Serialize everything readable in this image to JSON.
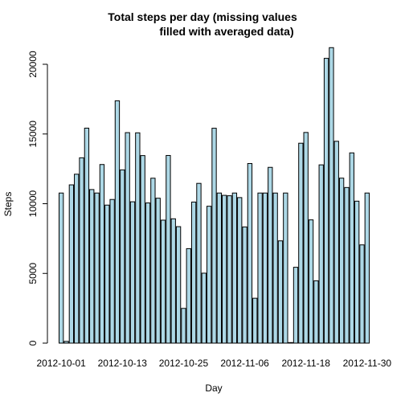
{
  "chart_data": {
    "type": "bar",
    "title": "Total steps per day (missing values",
    "title_line2": "filled with averaged data)",
    "xlabel": "Day",
    "ylabel": "Steps",
    "ylim": [
      0,
      21500
    ],
    "yticks": [
      "0",
      "5000",
      "10000",
      "15000",
      "20000"
    ],
    "ytick_values": [
      0,
      5000,
      10000,
      15000,
      20000
    ],
    "xtick_labels": [
      "2012-10-01",
      "2012-10-13",
      "2012-10-25",
      "2012-11-06",
      "2012-11-18",
      "2012-11-30"
    ],
    "xtick_indices": [
      1,
      13,
      25,
      37,
      49,
      61
    ],
    "bar_fill": "#add8e6",
    "bar_stroke": "#000000",
    "categories": [
      "2012-10-01",
      "2012-10-02",
      "2012-10-03",
      "2012-10-04",
      "2012-10-05",
      "2012-10-06",
      "2012-10-07",
      "2012-10-08",
      "2012-10-09",
      "2012-10-10",
      "2012-10-11",
      "2012-10-12",
      "2012-10-13",
      "2012-10-14",
      "2012-10-15",
      "2012-10-16",
      "2012-10-17",
      "2012-10-18",
      "2012-10-19",
      "2012-10-20",
      "2012-10-21",
      "2012-10-22",
      "2012-10-23",
      "2012-10-24",
      "2012-10-25",
      "2012-10-26",
      "2012-10-27",
      "2012-10-28",
      "2012-10-29",
      "2012-10-30",
      "2012-10-31",
      "2012-11-01",
      "2012-11-02",
      "2012-11-03",
      "2012-11-04",
      "2012-11-05",
      "2012-11-06",
      "2012-11-07",
      "2012-11-08",
      "2012-11-09",
      "2012-11-10",
      "2012-11-11",
      "2012-11-12",
      "2012-11-13",
      "2012-11-14",
      "2012-11-15",
      "2012-11-16",
      "2012-11-17",
      "2012-11-18",
      "2012-11-19",
      "2012-11-20",
      "2012-11-21",
      "2012-11-22",
      "2012-11-23",
      "2012-11-24",
      "2012-11-25",
      "2012-11-26",
      "2012-11-27",
      "2012-11-28",
      "2012-11-29",
      "2012-11-30"
    ],
    "values": [
      10766,
      126,
      11352,
      12116,
      13294,
      15420,
      11015,
      10766,
      12811,
      9900,
      10304,
      17382,
      12426,
      15098,
      10139,
      15084,
      13452,
      10056,
      11829,
      10395,
      8821,
      13460,
      8918,
      8355,
      2492,
      6778,
      10119,
      11458,
      5018,
      9819,
      15414,
      10766,
      10600,
      10571,
      10766,
      10439,
      8334,
      12883,
      3219,
      10766,
      10766,
      12608,
      10765,
      7336,
      10766,
      41,
      5441,
      14339,
      15110,
      8841,
      4472,
      12787,
      20427,
      21194,
      14478,
      11834,
      11162,
      13646,
      10183,
      7047,
      10766
    ]
  }
}
